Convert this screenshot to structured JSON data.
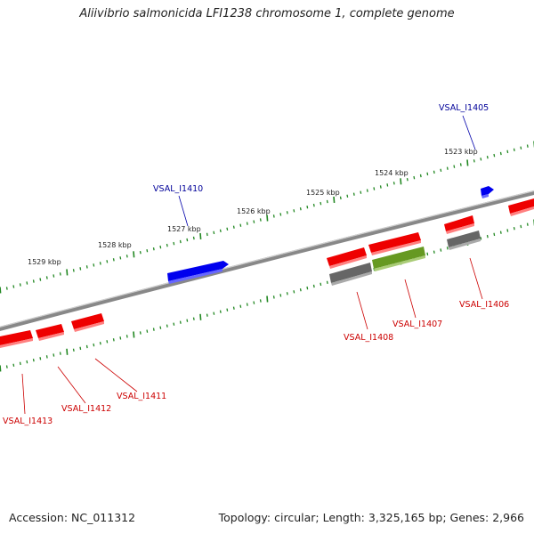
{
  "title": "Aliivibrio salmonicida LFI1238 chromosome 1, complete genome",
  "footer": {
    "accession": "Accession: NC_011312",
    "summary": "Topology: circular; Length: 3,325,165 bp; Genes: 2,966"
  },
  "colors": {
    "forward_gene": "#0000dd",
    "reverse_gene": "#ee0000",
    "pseudogene": "#666666",
    "highlight_gene": "#669922",
    "ticks": "#228822",
    "backbone": "#999999",
    "forward_label": "#000099",
    "reverse_label": "#cc0000"
  },
  "ruler": {
    "unit": "kbp",
    "labels": [
      "1523 kbp",
      "1524 kbp",
      "1525 kbp",
      "1526 kbp",
      "1527 kbp",
      "1528 kbp",
      "1529 kbp"
    ]
  },
  "genes": [
    {
      "label": "VSAL_I1405",
      "strand": "forward",
      "kind": "gene"
    },
    {
      "label": "VSAL_I1406",
      "strand": "reverse",
      "kind": "gene"
    },
    {
      "label": "VSAL_I1407",
      "strand": "reverse",
      "kind": "gene"
    },
    {
      "label": "VSAL_I1408",
      "strand": "reverse",
      "kind": "gene"
    },
    {
      "label": "VSAL_I1410",
      "strand": "forward",
      "kind": "gene"
    },
    {
      "label": "VSAL_I1411",
      "strand": "reverse",
      "kind": "gene"
    },
    {
      "label": "VSAL_I1412",
      "strand": "reverse",
      "kind": "gene"
    },
    {
      "label": "VSAL_I1413",
      "strand": "reverse",
      "kind": "gene"
    }
  ]
}
